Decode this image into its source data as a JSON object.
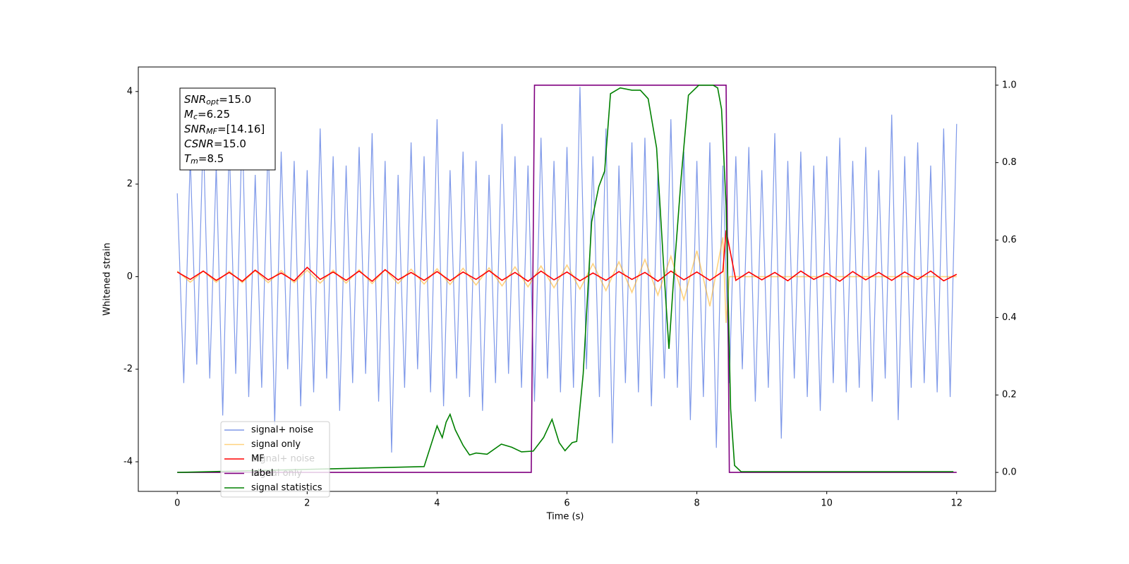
{
  "chart_data": {
    "type": "line",
    "xlabel": "Time (s)",
    "ylabel": "Whitened strain",
    "xlim": [
      -0.6,
      12.6
    ],
    "xticks": [
      0,
      2,
      4,
      6,
      8,
      10,
      12
    ],
    "ylim": [
      -4.64,
      4.53
    ],
    "yticks": [
      -4,
      -2,
      0,
      2,
      4
    ],
    "y2lim": [
      -0.049,
      1.047
    ],
    "y2ticks": [
      {
        "value": 0,
        "label": "0.0"
      },
      0.2,
      0.4,
      0.6,
      0.8,
      {
        "value": 1,
        "label": "1.0"
      }
    ],
    "legend_loc": "lower left",
    "annotations": [
      {
        "base": "SNR",
        "sub": "opt",
        "rest": "=15.0"
      },
      {
        "base": "M",
        "sub": "c",
        "rest": "=6.25"
      },
      {
        "base": "SNR",
        "sub": "MF",
        "rest": "=[14.16]"
      },
      {
        "base": "CSNR",
        "rest": "=15.0"
      },
      {
        "base": "T",
        "sub": "m",
        "rest": "=8.5"
      }
    ],
    "series": [
      {
        "name": "signal+ noise",
        "color": "#7893e8",
        "x": [
          0,
          0.1,
          0.2,
          0.3,
          0.4,
          0.5,
          0.6,
          0.7,
          0.8,
          0.9,
          1,
          1.1,
          1.2,
          1.3,
          1.4,
          1.5,
          1.6,
          1.7,
          1.8,
          1.9,
          2,
          2.1,
          2.2,
          2.3,
          2.4,
          2.5,
          2.6,
          2.7,
          2.8,
          2.9,
          3,
          3.1,
          3.2,
          3.3,
          3.4,
          3.5,
          3.6,
          3.7,
          3.8,
          3.9,
          4,
          4.1,
          4.2,
          4.3,
          4.4,
          4.5,
          4.6,
          4.7,
          4.8,
          4.9,
          5,
          5.1,
          5.2,
          5.3,
          5.4,
          5.5,
          5.6,
          5.7,
          5.8,
          5.9,
          6,
          6.1,
          6.2,
          6.3,
          6.4,
          6.5,
          6.6,
          6.7,
          6.8,
          6.9,
          7,
          7.1,
          7.2,
          7.3,
          7.4,
          7.5,
          7.6,
          7.7,
          7.8,
          7.9,
          8,
          8.1,
          8.2,
          8.3,
          8.4,
          8.5,
          8.6,
          8.7,
          8.8,
          8.9,
          9,
          9.1,
          9.2,
          9.3,
          9.4,
          9.5,
          9.6,
          9.7,
          9.8,
          9.9,
          10,
          10.1,
          10.2,
          10.3,
          10.4,
          10.5,
          10.6,
          10.7,
          10.8,
          10.9,
          11,
          11.1,
          11.2,
          11.3,
          11.4,
          11.5,
          11.6,
          11.7,
          11.8,
          11.9,
          12
        ],
        "values": [
          1.8,
          -2.3,
          2.6,
          -1.9,
          3.1,
          -2.2,
          2.4,
          -3.0,
          2.9,
          -2.1,
          3.3,
          -2.6,
          2.2,
          -2.4,
          3.0,
          -3.2,
          2.7,
          -2.0,
          2.5,
          -2.8,
          2.3,
          -2.5,
          3.2,
          -2.2,
          2.6,
          -2.9,
          2.4,
          -2.3,
          2.8,
          -2.1,
          3.1,
          -2.7,
          2.5,
          -3.8,
          2.2,
          -2.4,
          2.9,
          -2.0,
          2.6,
          -2.5,
          3.4,
          -2.8,
          2.3,
          -2.2,
          2.7,
          -2.6,
          2.5,
          -2.9,
          2.2,
          -2.3,
          3.3,
          -2.1,
          2.6,
          -2.4,
          2.4,
          -2.7,
          3.0,
          -2.2,
          2.5,
          -2.5,
          2.8,
          -2.4,
          4.1,
          -2.0,
          2.6,
          -2.6,
          3.2,
          -3.6,
          2.4,
          -2.3,
          2.9,
          -2.5,
          3.0,
          -2.8,
          2.3,
          -2.2,
          3.4,
          -2.4,
          2.7,
          -3.1,
          2.5,
          -2.6,
          2.9,
          -3.7,
          2.4,
          -2.3,
          2.6,
          -2.0,
          2.8,
          -2.7,
          2.3,
          -2.4,
          3.1,
          -3.5,
          2.5,
          -2.2,
          2.7,
          -2.6,
          2.4,
          -2.9,
          2.6,
          -2.3,
          3.0,
          -2.5,
          2.5,
          -2.4,
          2.8,
          -2.7,
          2.3,
          -2.2,
          3.5,
          -3.1,
          2.6,
          -2.4,
          2.9,
          -2.3,
          2.4,
          -2.5,
          3.2,
          -2.6,
          3.3
        ]
      },
      {
        "name": "signal only",
        "color": "#ffa500",
        "x": [
          0,
          0.2,
          0.4,
          0.6,
          0.8,
          1,
          1.2,
          1.4,
          1.6,
          1.8,
          2,
          2.2,
          2.4,
          2.6,
          2.8,
          3,
          3.2,
          3.4,
          3.6,
          3.8,
          4,
          4.2,
          4.4,
          4.6,
          4.8,
          5,
          5.2,
          5.4,
          5.6,
          5.8,
          6,
          6.2,
          6.4,
          6.6,
          6.8,
          7,
          7.2,
          7.4,
          7.6,
          7.8,
          8,
          8.2,
          8.4,
          8.45,
          8.5,
          12
        ],
        "values": [
          0.12,
          -0.12,
          0.12,
          -0.12,
          0.12,
          -0.13,
          0.13,
          -0.13,
          0.13,
          -0.13,
          0.14,
          -0.14,
          0.14,
          -0.14,
          0.15,
          -0.15,
          0.15,
          -0.15,
          0.16,
          -0.16,
          0.17,
          -0.17,
          0.18,
          -0.18,
          0.19,
          -0.2,
          0.21,
          -0.22,
          0.23,
          -0.24,
          0.25,
          -0.27,
          0.28,
          -0.3,
          0.32,
          -0.34,
          0.37,
          -0.4,
          0.44,
          -0.5,
          0.56,
          -0.64,
          0.85,
          -1.0,
          0,
          0
        ]
      },
      {
        "name": "MF",
        "color": "#ff0000",
        "x": [
          0,
          0.2,
          0.4,
          0.6,
          0.8,
          1,
          1.2,
          1.4,
          1.6,
          1.8,
          2,
          2.2,
          2.4,
          2.6,
          2.8,
          3,
          3.2,
          3.4,
          3.6,
          3.8,
          4,
          4.2,
          4.4,
          4.6,
          4.8,
          5,
          5.2,
          5.4,
          5.6,
          5.8,
          6,
          6.2,
          6.4,
          6.6,
          6.8,
          7,
          7.2,
          7.4,
          7.6,
          7.8,
          8,
          8.2,
          8.4,
          8.45,
          8.6,
          8.8,
          9,
          9.2,
          9.4,
          9.6,
          9.8,
          10,
          10.2,
          10.4,
          10.6,
          10.8,
          11,
          11.2,
          11.4,
          11.6,
          11.8,
          12
        ],
        "values": [
          0.1,
          -0.06,
          0.12,
          -0.08,
          0.09,
          -0.1,
          0.14,
          -0.07,
          0.08,
          -0.09,
          0.2,
          -0.06,
          0.1,
          -0.08,
          0.12,
          -0.1,
          0.15,
          -0.07,
          0.09,
          -0.08,
          0.11,
          -0.09,
          0.1,
          -0.06,
          0.13,
          -0.08,
          0.09,
          -0.1,
          0.12,
          -0.07,
          0.1,
          -0.09,
          0.08,
          -0.08,
          0.11,
          -0.06,
          0.09,
          -0.1,
          0.12,
          -0.07,
          0.1,
          -0.08,
          0.11,
          1.0,
          -0.08,
          0.1,
          -0.07,
          0.09,
          -0.09,
          0.12,
          -0.06,
          0.08,
          -0.1,
          0.11,
          -0.07,
          0.09,
          -0.08,
          0.1,
          -0.06,
          0.12,
          -0.09,
          0.05
        ]
      },
      {
        "name": "label",
        "color": "#800080",
        "axis": "y2",
        "x": [
          0,
          5.45,
          5.5,
          8.45,
          8.5,
          12
        ],
        "values": [
          0,
          0,
          1,
          1,
          0,
          0
        ]
      },
      {
        "name": "signal statistics",
        "color": "#008000",
        "axis": "y2",
        "x": [
          0,
          3.8,
          4.0,
          4.08,
          4.14,
          4.2,
          4.28,
          4.4,
          4.5,
          4.6,
          4.77,
          4.99,
          5.15,
          5.3,
          5.48,
          5.64,
          5.77,
          5.88,
          5.97,
          6.08,
          6.15,
          6.25,
          6.38,
          6.49,
          6.58,
          6.67,
          6.82,
          7.0,
          7.13,
          7.25,
          7.38,
          7.49,
          7.57,
          7.65,
          7.76,
          7.87,
          8.03,
          8.25,
          8.32,
          8.38,
          8.45,
          8.52,
          8.58,
          8.68,
          11.95
        ],
        "values": [
          0,
          0.015,
          0.12,
          0.09,
          0.13,
          0.15,
          0.11,
          0.07,
          0.045,
          0.05,
          0.047,
          0.073,
          0.065,
          0.053,
          0.055,
          0.09,
          0.137,
          0.077,
          0.056,
          0.077,
          0.08,
          0.255,
          0.647,
          0.738,
          0.778,
          0.978,
          0.993,
          0.987,
          0.987,
          0.965,
          0.838,
          0.528,
          0.319,
          0.52,
          0.765,
          0.974,
          1.0,
          1.0,
          0.993,
          0.938,
          0.69,
          0.164,
          0.018,
          0.002,
          0.002
        ]
      }
    ]
  }
}
